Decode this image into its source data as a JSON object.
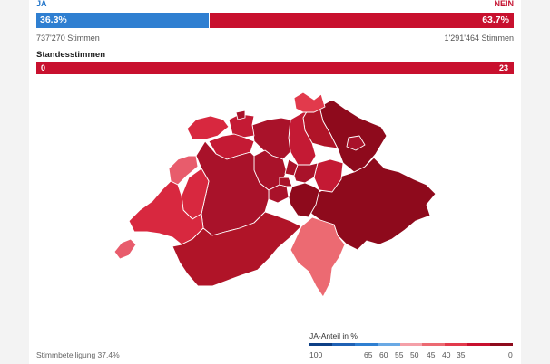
{
  "result": {
    "ja_label": "JA",
    "nein_label": "NEIN",
    "ja_percent": "36.3%",
    "nein_percent": "63.7%",
    "ja_share": 36.3,
    "ja_votes": "737'270 Stimmen",
    "nein_votes": "1'291'464 Stimmen"
  },
  "standesstimmen": {
    "title": "Standesstimmen",
    "ja": "0",
    "nein": "23"
  },
  "map": {
    "color_scale": [
      "#0d3f85",
      "#1f61b4",
      "#2f7fd1",
      "#6aa9e4",
      "#f4a0a8",
      "#ec6a72",
      "#e23a4c",
      "#c8102e",
      "#8e0a1c"
    ],
    "cantons": [
      {
        "name": "GE",
        "color": "#e85c6c"
      },
      {
        "name": "VD",
        "color": "#d8283f"
      },
      {
        "name": "NE",
        "color": "#e85c6c"
      },
      {
        "name": "FR",
        "color": "#d8283f"
      },
      {
        "name": "VS",
        "color": "#b01428"
      },
      {
        "name": "BE",
        "color": "#a9122a"
      },
      {
        "name": "JU",
        "color": "#d8283f"
      },
      {
        "name": "BL",
        "color": "#c41a34"
      },
      {
        "name": "SO",
        "color": "#c41a34"
      },
      {
        "name": "AG",
        "color": "#a9122a"
      },
      {
        "name": "ZH",
        "color": "#c41a34"
      },
      {
        "name": "SH",
        "color": "#e23a4c"
      },
      {
        "name": "TG",
        "color": "#b01428"
      },
      {
        "name": "SG",
        "color": "#8e0a1c"
      },
      {
        "name": "GR",
        "color": "#8e0a1c"
      },
      {
        "name": "TI",
        "color": "#ec6a72"
      },
      {
        "name": "GL",
        "color": "#c41a34"
      },
      {
        "name": "UR",
        "color": "#8e0a1c"
      },
      {
        "name": "LU",
        "color": "#a9122a"
      }
    ]
  },
  "footer": {
    "turnout": "Stimmbeteiligung 37.4%"
  },
  "legend": {
    "title": "JA-Anteil in %",
    "ticks": [
      "100",
      "65",
      "60",
      "55",
      "50",
      "45",
      "40",
      "35",
      "0"
    ]
  }
}
